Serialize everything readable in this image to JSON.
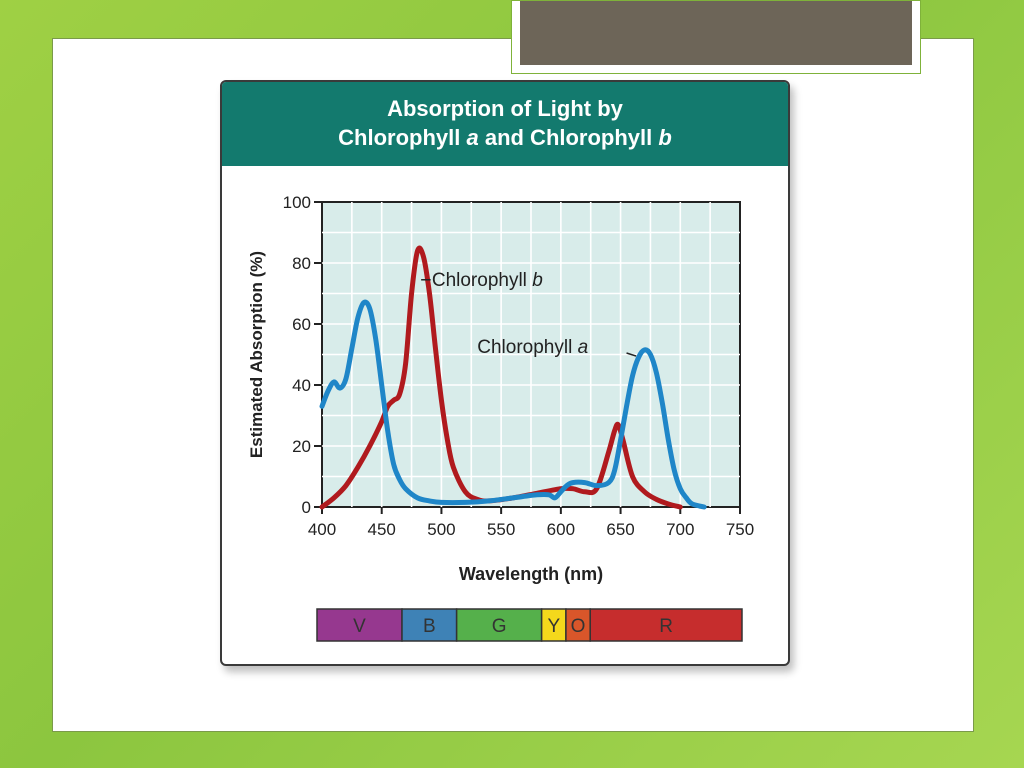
{
  "chart_data": {
    "type": "line",
    "title_line1": "Absorption of Light by",
    "title_line2_parts": [
      "Chlorophyll ",
      "a",
      " and Chlorophyll ",
      "b"
    ],
    "xlabel": "Wavelength (nm)",
    "ylabel": "Estimated Absorption (%)",
    "xlim": [
      400,
      750
    ],
    "ylim": [
      0,
      100
    ],
    "xticks": [
      400,
      450,
      500,
      550,
      600,
      650,
      700,
      750
    ],
    "yticks": [
      0,
      20,
      40,
      60,
      80,
      100
    ],
    "grid": true,
    "series": [
      {
        "name": "Chlorophyll a",
        "label_parts": [
          "Chlorophyll ",
          "a"
        ],
        "color": "#1f86c8",
        "points": [
          [
            400,
            33
          ],
          [
            405,
            38
          ],
          [
            410,
            41
          ],
          [
            415,
            39
          ],
          [
            420,
            42
          ],
          [
            425,
            52
          ],
          [
            430,
            62
          ],
          [
            435,
            67
          ],
          [
            440,
            65
          ],
          [
            445,
            55
          ],
          [
            450,
            40
          ],
          [
            455,
            25
          ],
          [
            460,
            14
          ],
          [
            465,
            9
          ],
          [
            470,
            6
          ],
          [
            480,
            3
          ],
          [
            490,
            2
          ],
          [
            500,
            1.5
          ],
          [
            520,
            1.5
          ],
          [
            540,
            2
          ],
          [
            560,
            3
          ],
          [
            580,
            4
          ],
          [
            590,
            4
          ],
          [
            595,
            3
          ],
          [
            600,
            5
          ],
          [
            605,
            7
          ],
          [
            610,
            8
          ],
          [
            620,
            8
          ],
          [
            630,
            7
          ],
          [
            640,
            8
          ],
          [
            645,
            12
          ],
          [
            650,
            22
          ],
          [
            655,
            33
          ],
          [
            660,
            43
          ],
          [
            665,
            49
          ],
          [
            670,
            51.5
          ],
          [
            675,
            50
          ],
          [
            680,
            44
          ],
          [
            685,
            34
          ],
          [
            690,
            22
          ],
          [
            695,
            12
          ],
          [
            700,
            6
          ],
          [
            705,
            3
          ],
          [
            710,
            1
          ],
          [
            720,
            0
          ]
        ]
      },
      {
        "name": "Chlorophyll b",
        "label_parts": [
          "Chlorophyll ",
          "b"
        ],
        "color": "#b01a1e",
        "points": [
          [
            400,
            0
          ],
          [
            410,
            3
          ],
          [
            420,
            7
          ],
          [
            430,
            13
          ],
          [
            440,
            20
          ],
          [
            450,
            28
          ],
          [
            455,
            33
          ],
          [
            460,
            35
          ],
          [
            465,
            37
          ],
          [
            470,
            47
          ],
          [
            475,
            70
          ],
          [
            480,
            84
          ],
          [
            485,
            82
          ],
          [
            490,
            70
          ],
          [
            495,
            52
          ],
          [
            500,
            35
          ],
          [
            505,
            22
          ],
          [
            510,
            13
          ],
          [
            520,
            5
          ],
          [
            530,
            2.5
          ],
          [
            540,
            2
          ],
          [
            560,
            3
          ],
          [
            580,
            4.5
          ],
          [
            600,
            6
          ],
          [
            610,
            6
          ],
          [
            620,
            5
          ],
          [
            630,
            6
          ],
          [
            640,
            18
          ],
          [
            645,
            25
          ],
          [
            648,
            27
          ],
          [
            652,
            22
          ],
          [
            660,
            10
          ],
          [
            670,
            5
          ],
          [
            680,
            2.5
          ],
          [
            690,
            1
          ],
          [
            700,
            0
          ]
        ]
      }
    ],
    "spectrum_bar": [
      {
        "label": "V",
        "from": 400,
        "to": 470,
        "color": "#96388f"
      },
      {
        "label": "B",
        "from": 470,
        "to": 515,
        "color": "#3e82b6"
      },
      {
        "label": "G",
        "from": 515,
        "to": 585,
        "color": "#55b04b"
      },
      {
        "label": "Y",
        "from": 585,
        "to": 605,
        "color": "#f4d81c"
      },
      {
        "label": "O",
        "from": 605,
        "to": 625,
        "color": "#d9562a"
      },
      {
        "label": "R",
        "from": 625,
        "to": 750,
        "color": "#c62d2d"
      }
    ]
  }
}
